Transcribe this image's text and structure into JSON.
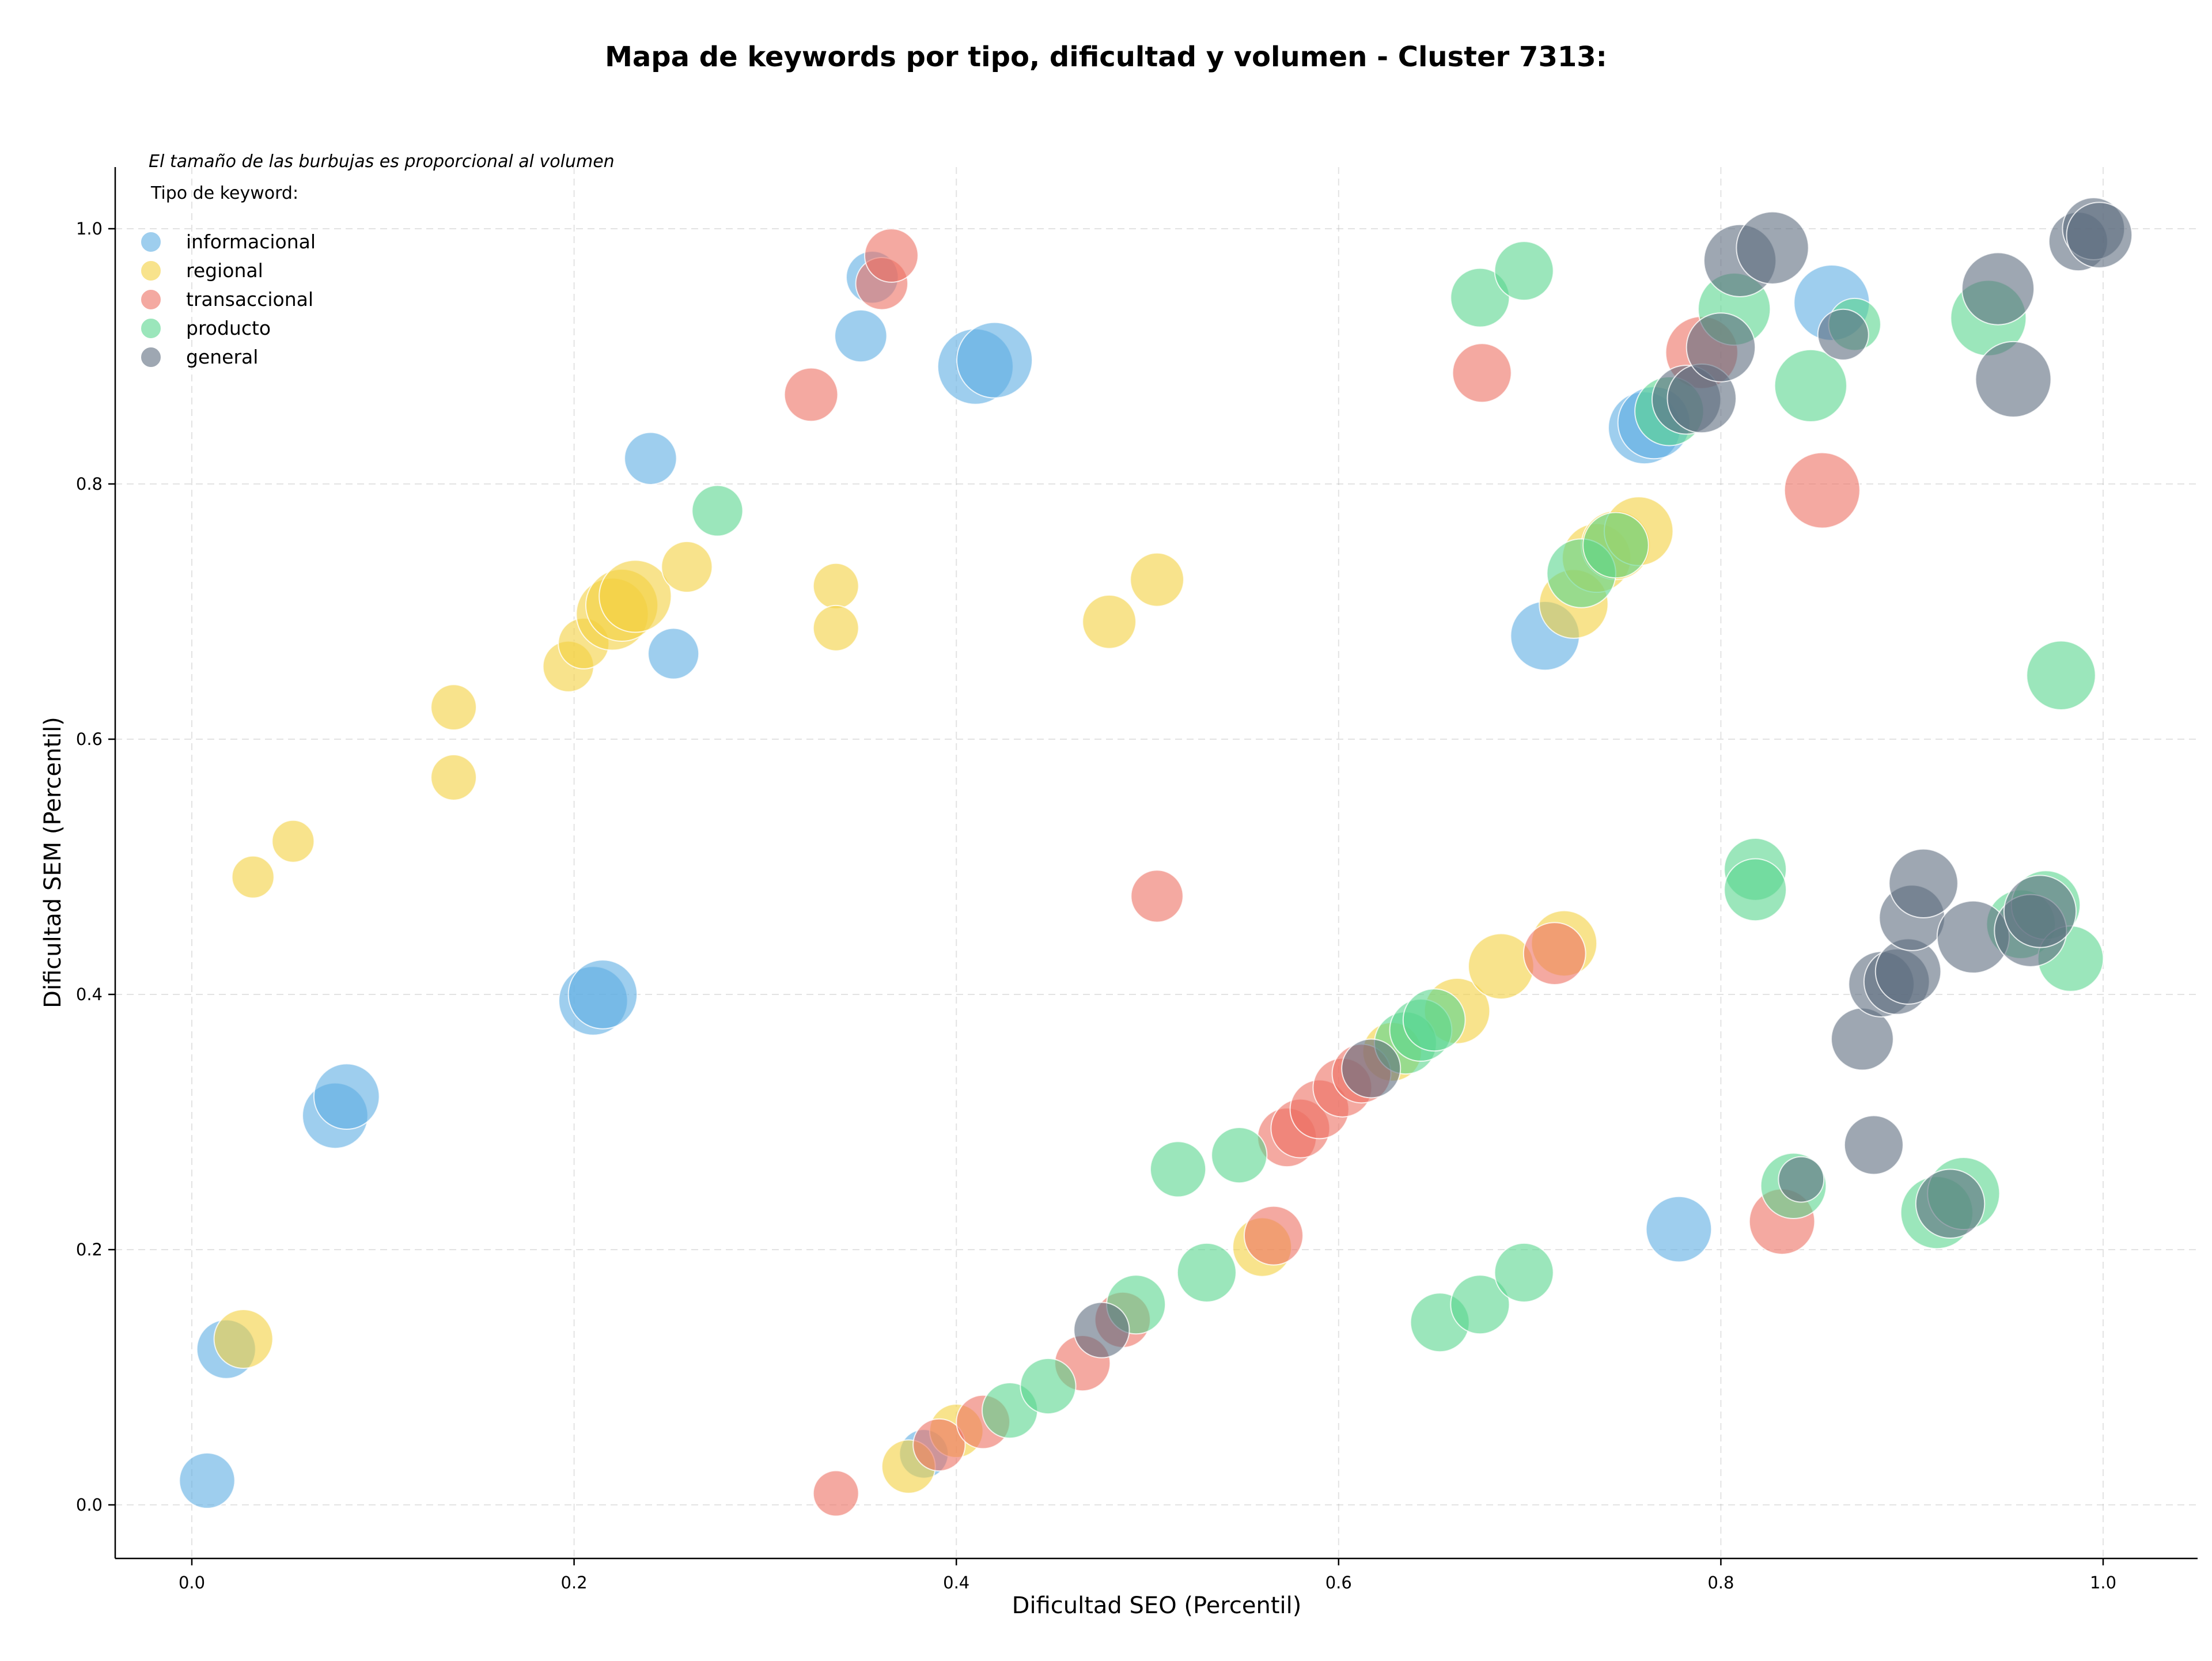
{
  "chart_data": {
    "type": "scatter",
    "title": "Mapa de keywords por tipo, dificultad y volumen - Cluster 7313:",
    "xlabel": "Dificultad SEO (Percentil)",
    "ylabel": "Dificultad SEM (Percentil)",
    "xlim": [
      -0.04,
      1.05
    ],
    "ylim": [
      -0.04,
      1.05
    ],
    "xticks": [
      0.0,
      0.2,
      0.4,
      0.6,
      0.8,
      1.0
    ],
    "yticks": [
      0.0,
      0.2,
      0.4,
      0.6,
      0.8,
      1.0
    ],
    "xtick_labels": [
      "0.0",
      "0.2",
      "0.4",
      "0.6",
      "0.8",
      "1.0"
    ],
    "ytick_labels": [
      "0.0",
      "0.2",
      "0.4",
      "0.6",
      "0.8",
      "1.0"
    ],
    "grid": true,
    "annotation": "El tamaño de las burbujas es proporcional al volumen",
    "legend_title": "Tipo de keyword:",
    "legend_position": "top-left",
    "series": [
      {
        "name": "informacional",
        "color": "#5DADE2",
        "points": [
          {
            "x": 0.008,
            "y": 0.019,
            "s": 0.45
          },
          {
            "x": 0.018,
            "y": 0.122,
            "s": 0.5
          },
          {
            "x": 0.075,
            "y": 0.305,
            "s": 0.6
          },
          {
            "x": 0.081,
            "y": 0.32,
            "s": 0.6
          },
          {
            "x": 0.21,
            "y": 0.395,
            "s": 0.65
          },
          {
            "x": 0.215,
            "y": 0.4,
            "s": 0.65
          },
          {
            "x": 0.24,
            "y": 0.82,
            "s": 0.4
          },
          {
            "x": 0.252,
            "y": 0.667,
            "s": 0.38
          },
          {
            "x": 0.35,
            "y": 0.916,
            "s": 0.4
          },
          {
            "x": 0.356,
            "y": 0.962,
            "s": 0.4
          },
          {
            "x": 0.41,
            "y": 0.892,
            "s": 0.75
          },
          {
            "x": 0.42,
            "y": 0.897,
            "s": 0.75
          },
          {
            "x": 0.383,
            "y": 0.04,
            "s": 0.35
          },
          {
            "x": 0.708,
            "y": 0.681,
            "s": 0.65
          },
          {
            "x": 0.76,
            "y": 0.844,
            "s": 0.7
          },
          {
            "x": 0.765,
            "y": 0.848,
            "s": 0.7
          },
          {
            "x": 0.778,
            "y": 0.216,
            "s": 0.6
          },
          {
            "x": 0.858,
            "y": 0.942,
            "s": 0.75
          }
        ]
      },
      {
        "name": "regional",
        "color": "#F4D03F",
        "points": [
          {
            "x": 0.027,
            "y": 0.13,
            "s": 0.5
          },
          {
            "x": 0.032,
            "y": 0.492,
            "s": 0.25
          },
          {
            "x": 0.053,
            "y": 0.52,
            "s": 0.25
          },
          {
            "x": 0.137,
            "y": 0.57,
            "s": 0.3
          },
          {
            "x": 0.137,
            "y": 0.625,
            "s": 0.3
          },
          {
            "x": 0.197,
            "y": 0.657,
            "s": 0.38
          },
          {
            "x": 0.205,
            "y": 0.675,
            "s": 0.38
          },
          {
            "x": 0.22,
            "y": 0.698,
            "s": 0.7
          },
          {
            "x": 0.225,
            "y": 0.705,
            "s": 0.7
          },
          {
            "x": 0.232,
            "y": 0.712,
            "s": 0.7
          },
          {
            "x": 0.259,
            "y": 0.735,
            "s": 0.38
          },
          {
            "x": 0.337,
            "y": 0.72,
            "s": 0.3
          },
          {
            "x": 0.337,
            "y": 0.687,
            "s": 0.3
          },
          {
            "x": 0.48,
            "y": 0.692,
            "s": 0.42
          },
          {
            "x": 0.505,
            "y": 0.725,
            "s": 0.42
          },
          {
            "x": 0.375,
            "y": 0.03,
            "s": 0.42
          },
          {
            "x": 0.4,
            "y": 0.058,
            "s": 0.42
          },
          {
            "x": 0.56,
            "y": 0.202,
            "s": 0.5
          },
          {
            "x": 0.628,
            "y": 0.355,
            "s": 0.5
          },
          {
            "x": 0.662,
            "y": 0.387,
            "s": 0.6
          },
          {
            "x": 0.685,
            "y": 0.422,
            "s": 0.6
          },
          {
            "x": 0.718,
            "y": 0.44,
            "s": 0.6
          },
          {
            "x": 0.723,
            "y": 0.706,
            "s": 0.65
          },
          {
            "x": 0.735,
            "y": 0.742,
            "s": 0.65
          },
          {
            "x": 0.745,
            "y": 0.752,
            "s": 0.65
          },
          {
            "x": 0.757,
            "y": 0.763,
            "s": 0.65
          }
        ]
      },
      {
        "name": "transaccional",
        "color": "#EC7063",
        "points": [
          {
            "x": 0.324,
            "y": 0.87,
            "s": 0.42
          },
          {
            "x": 0.337,
            "y": 0.009,
            "s": 0.3
          },
          {
            "x": 0.361,
            "y": 0.957,
            "s": 0.4
          },
          {
            "x": 0.366,
            "y": 0.979,
            "s": 0.42
          },
          {
            "x": 0.391,
            "y": 0.047,
            "s": 0.4
          },
          {
            "x": 0.414,
            "y": 0.065,
            "s": 0.42
          },
          {
            "x": 0.466,
            "y": 0.111,
            "s": 0.45
          },
          {
            "x": 0.487,
            "y": 0.145,
            "s": 0.45
          },
          {
            "x": 0.505,
            "y": 0.477,
            "s": 0.4
          },
          {
            "x": 0.566,
            "y": 0.211,
            "s": 0.5
          },
          {
            "x": 0.573,
            "y": 0.288,
            "s": 0.5
          },
          {
            "x": 0.58,
            "y": 0.295,
            "s": 0.5
          },
          {
            "x": 0.59,
            "y": 0.31,
            "s": 0.5
          },
          {
            "x": 0.602,
            "y": 0.327,
            "s": 0.5
          },
          {
            "x": 0.612,
            "y": 0.338,
            "s": 0.5
          },
          {
            "x": 0.675,
            "y": 0.887,
            "s": 0.5
          },
          {
            "x": 0.713,
            "y": 0.432,
            "s": 0.55
          },
          {
            "x": 0.79,
            "y": 0.903,
            "s": 0.7
          },
          {
            "x": 0.832,
            "y": 0.222,
            "s": 0.6
          },
          {
            "x": 0.853,
            "y": 0.795,
            "s": 0.75
          }
        ]
      },
      {
        "name": "producto",
        "color": "#58D68D",
        "points": [
          {
            "x": 0.275,
            "y": 0.779,
            "s": 0.38
          },
          {
            "x": 0.428,
            "y": 0.074,
            "s": 0.45
          },
          {
            "x": 0.448,
            "y": 0.093,
            "s": 0.45
          },
          {
            "x": 0.494,
            "y": 0.157,
            "s": 0.5
          },
          {
            "x": 0.516,
            "y": 0.263,
            "s": 0.45
          },
          {
            "x": 0.531,
            "y": 0.182,
            "s": 0.5
          },
          {
            "x": 0.548,
            "y": 0.274,
            "s": 0.45
          },
          {
            "x": 0.635,
            "y": 0.362,
            "s": 0.55
          },
          {
            "x": 0.643,
            "y": 0.372,
            "s": 0.55
          },
          {
            "x": 0.65,
            "y": 0.38,
            "s": 0.55
          },
          {
            "x": 0.653,
            "y": 0.143,
            "s": 0.5
          },
          {
            "x": 0.674,
            "y": 0.157,
            "s": 0.5
          },
          {
            "x": 0.674,
            "y": 0.946,
            "s": 0.5
          },
          {
            "x": 0.697,
            "y": 0.182,
            "s": 0.5
          },
          {
            "x": 0.697,
            "y": 0.967,
            "s": 0.5
          },
          {
            "x": 0.727,
            "y": 0.73,
            "s": 0.65
          },
          {
            "x": 0.745,
            "y": 0.752,
            "s": 0.6
          },
          {
            "x": 0.773,
            "y": 0.857,
            "s": 0.65
          },
          {
            "x": 0.807,
            "y": 0.937,
            "s": 0.7
          },
          {
            "x": 0.818,
            "y": 0.498,
            "s": 0.55
          },
          {
            "x": 0.818,
            "y": 0.482,
            "s": 0.55
          },
          {
            "x": 0.838,
            "y": 0.25,
            "s": 0.6
          },
          {
            "x": 0.847,
            "y": 0.877,
            "s": 0.7
          },
          {
            "x": 0.87,
            "y": 0.925,
            "s": 0.4
          },
          {
            "x": 0.913,
            "y": 0.229,
            "s": 0.7
          },
          {
            "x": 0.927,
            "y": 0.244,
            "s": 0.7
          },
          {
            "x": 0.94,
            "y": 0.93,
            "s": 0.75
          },
          {
            "x": 0.957,
            "y": 0.455,
            "s": 0.65
          },
          {
            "x": 0.97,
            "y": 0.47,
            "s": 0.65
          },
          {
            "x": 0.978,
            "y": 0.65,
            "s": 0.65
          },
          {
            "x": 0.983,
            "y": 0.428,
            "s": 0.6
          }
        ]
      },
      {
        "name": "general",
        "color": "#5D6D7E",
        "points": [
          {
            "x": 0.476,
            "y": 0.137,
            "s": 0.45
          },
          {
            "x": 0.842,
            "y": 0.255,
            "s": 0.3
          },
          {
            "x": 0.617,
            "y": 0.342,
            "s": 0.5
          },
          {
            "x": 0.782,
            "y": 0.866,
            "s": 0.65
          },
          {
            "x": 0.79,
            "y": 0.867,
            "s": 0.65
          },
          {
            "x": 0.8,
            "y": 0.907,
            "s": 0.65
          },
          {
            "x": 0.81,
            "y": 0.975,
            "s": 0.7
          },
          {
            "x": 0.827,
            "y": 0.985,
            "s": 0.7
          },
          {
            "x": 0.864,
            "y": 0.917,
            "s": 0.38
          },
          {
            "x": 0.874,
            "y": 0.365,
            "s": 0.55
          },
          {
            "x": 0.88,
            "y": 0.282,
            "s": 0.5
          },
          {
            "x": 0.884,
            "y": 0.408,
            "s": 0.6
          },
          {
            "x": 0.892,
            "y": 0.41,
            "s": 0.6
          },
          {
            "x": 0.898,
            "y": 0.418,
            "s": 0.6
          },
          {
            "x": 0.9,
            "y": 0.46,
            "s": 0.6
          },
          {
            "x": 0.906,
            "y": 0.487,
            "s": 0.65
          },
          {
            "x": 0.92,
            "y": 0.236,
            "s": 0.65
          },
          {
            "x": 0.932,
            "y": 0.445,
            "s": 0.7
          },
          {
            "x": 0.945,
            "y": 0.953,
            "s": 0.7
          },
          {
            "x": 0.953,
            "y": 0.882,
            "s": 0.75
          },
          {
            "x": 0.962,
            "y": 0.45,
            "s": 0.7
          },
          {
            "x": 0.967,
            "y": 0.465,
            "s": 0.7
          },
          {
            "x": 0.987,
            "y": 0.99,
            "s": 0.5
          },
          {
            "x": 0.995,
            "y": 1.0,
            "s": 0.55
          },
          {
            "x": 0.998,
            "y": 0.995,
            "s": 0.6
          }
        ]
      }
    ]
  }
}
